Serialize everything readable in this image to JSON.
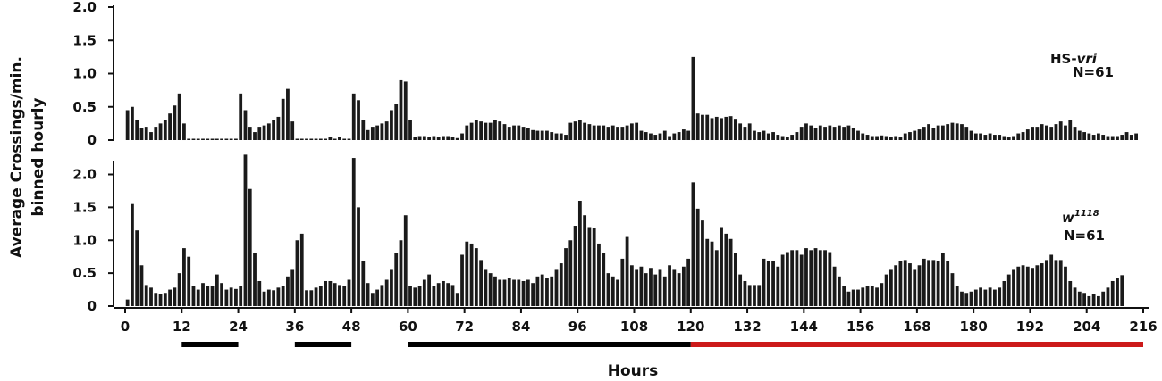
{
  "chart_data": {
    "type": "bar",
    "ylabel_line1": "Average Crossings/min.",
    "ylabel_line2": "binned hourly",
    "xlabel": "Hours",
    "x_ticks": [
      0,
      12,
      24,
      36,
      48,
      60,
      72,
      84,
      96,
      108,
      120,
      132,
      144,
      156,
      168,
      180,
      192,
      204,
      216
    ],
    "x_range": [
      0,
      216
    ],
    "bar_width_hours": 1,
    "light_bars": [
      {
        "start": 12,
        "end": 24,
        "color": "#000000"
      },
      {
        "start": 36,
        "end": 48,
        "color": "#000000"
      },
      {
        "start": 60,
        "end": 120,
        "color": "#000000"
      },
      {
        "start": 120,
        "end": 216,
        "color": "#cc1a1a"
      }
    ],
    "panels": [
      {
        "label_main": "HS-",
        "label_italic": "vri",
        "label_sup": "",
        "n_label": "N=61",
        "ylim": [
          0,
          2.0
        ],
        "y_ticks": [
          {
            "value": 0,
            "label": "0"
          },
          {
            "value": 0.5,
            "label": "0.5"
          },
          {
            "value": 1.0,
            "label": "1.0"
          },
          {
            "value": 1.5,
            "label": "1.5"
          },
          {
            "value": 2.0,
            "label": "2.0"
          }
        ],
        "values": [
          0.45,
          0.5,
          0.3,
          0.18,
          0.2,
          0.12,
          0.2,
          0.25,
          0.3,
          0.4,
          0.52,
          0.7,
          0.25,
          0.02,
          0.02,
          0.02,
          0.02,
          0.02,
          0.02,
          0.02,
          0.02,
          0.02,
          0.02,
          0.02,
          0.7,
          0.45,
          0.2,
          0.12,
          0.2,
          0.22,
          0.25,
          0.3,
          0.35,
          0.62,
          0.77,
          0.28,
          0.02,
          0.02,
          0.02,
          0.02,
          0.02,
          0.02,
          0.02,
          0.05,
          0.02,
          0.05,
          0.02,
          0.02,
          0.7,
          0.6,
          0.3,
          0.15,
          0.2,
          0.22,
          0.25,
          0.28,
          0.45,
          0.55,
          0.9,
          0.88,
          0.3,
          0.05,
          0.06,
          0.06,
          0.05,
          0.06,
          0.05,
          0.06,
          0.06,
          0.05,
          0.03,
          0.1,
          0.22,
          0.26,
          0.3,
          0.28,
          0.26,
          0.26,
          0.3,
          0.28,
          0.24,
          0.2,
          0.22,
          0.22,
          0.2,
          0.18,
          0.15,
          0.14,
          0.14,
          0.14,
          0.12,
          0.1,
          0.1,
          0.08,
          0.26,
          0.28,
          0.3,
          0.26,
          0.24,
          0.22,
          0.22,
          0.22,
          0.2,
          0.22,
          0.2,
          0.2,
          0.22,
          0.25,
          0.26,
          0.14,
          0.12,
          0.1,
          0.08,
          0.1,
          0.14,
          0.06,
          0.1,
          0.12,
          0.16,
          0.14,
          1.25,
          0.4,
          0.38,
          0.38,
          0.33,
          0.35,
          0.33,
          0.35,
          0.36,
          0.32,
          0.25,
          0.2,
          0.25,
          0.14,
          0.12,
          0.14,
          0.1,
          0.12,
          0.08,
          0.06,
          0.05,
          0.08,
          0.12,
          0.2,
          0.25,
          0.22,
          0.18,
          0.22,
          0.2,
          0.22,
          0.2,
          0.22,
          0.2,
          0.22,
          0.18,
          0.14,
          0.1,
          0.08,
          0.06,
          0.06,
          0.07,
          0.06,
          0.05,
          0.06,
          0.04,
          0.1,
          0.12,
          0.14,
          0.16,
          0.2,
          0.24,
          0.18,
          0.22,
          0.22,
          0.24,
          0.26,
          0.25,
          0.24,
          0.2,
          0.14,
          0.1,
          0.1,
          0.08,
          0.1,
          0.08,
          0.08,
          0.06,
          0.04,
          0.06,
          0.1,
          0.12,
          0.16,
          0.2,
          0.2,
          0.24,
          0.22,
          0.2,
          0.24,
          0.28,
          0.22,
          0.3,
          0.2,
          0.14,
          0.12,
          0.1,
          0.08,
          0.1,
          0.08,
          0.06,
          0.06,
          0.06,
          0.08,
          0.12,
          0.08,
          0.1
        ]
      },
      {
        "label_main": "w",
        "label_italic": "",
        "label_sup": "1118",
        "n_label": "N=61",
        "ylim": [
          0,
          2.4
        ],
        "y_ticks": [
          {
            "value": 0,
            "label": "0"
          },
          {
            "value": 0.5,
            "label": "0.5"
          },
          {
            "value": 1.0,
            "label": "1.0"
          },
          {
            "value": 1.5,
            "label": "1.5"
          },
          {
            "value": 2.0,
            "label": "2.0"
          }
        ],
        "values": [
          0.1,
          1.55,
          1.15,
          0.62,
          0.32,
          0.28,
          0.2,
          0.18,
          0.2,
          0.25,
          0.28,
          0.5,
          0.88,
          0.75,
          0.3,
          0.25,
          0.35,
          0.3,
          0.3,
          0.48,
          0.35,
          0.25,
          0.28,
          0.26,
          0.3,
          2.3,
          1.78,
          0.8,
          0.38,
          0.22,
          0.25,
          0.24,
          0.28,
          0.3,
          0.45,
          0.55,
          1.0,
          1.1,
          0.24,
          0.24,
          0.28,
          0.3,
          0.38,
          0.38,
          0.35,
          0.32,
          0.3,
          0.4,
          2.25,
          1.5,
          0.68,
          0.35,
          0.2,
          0.25,
          0.32,
          0.4,
          0.55,
          0.8,
          1.0,
          1.38,
          0.3,
          0.28,
          0.3,
          0.4,
          0.48,
          0.3,
          0.35,
          0.38,
          0.35,
          0.32,
          0.2,
          0.78,
          0.98,
          0.95,
          0.88,
          0.7,
          0.55,
          0.5,
          0.45,
          0.4,
          0.4,
          0.42,
          0.4,
          0.4,
          0.38,
          0.4,
          0.35,
          0.45,
          0.48,
          0.42,
          0.45,
          0.55,
          0.65,
          0.88,
          1.0,
          1.22,
          1.6,
          1.38,
          1.2,
          1.18,
          0.95,
          0.8,
          0.5,
          0.45,
          0.4,
          0.72,
          1.05,
          0.62,
          0.55,
          0.6,
          0.5,
          0.58,
          0.48,
          0.55,
          0.45,
          0.62,
          0.55,
          0.5,
          0.6,
          0.72,
          1.88,
          1.48,
          1.3,
          1.02,
          0.98,
          0.85,
          1.2,
          1.1,
          1.02,
          0.8,
          0.48,
          0.38,
          0.32,
          0.32,
          0.32,
          0.72,
          0.68,
          0.68,
          0.6,
          0.78,
          0.82,
          0.85,
          0.85,
          0.78,
          0.88,
          0.85,
          0.88,
          0.85,
          0.85,
          0.82,
          0.6,
          0.45,
          0.3,
          0.22,
          0.25,
          0.25,
          0.28,
          0.3,
          0.3,
          0.28,
          0.35,
          0.48,
          0.55,
          0.62,
          0.68,
          0.7,
          0.65,
          0.55,
          0.62,
          0.72,
          0.7,
          0.7,
          0.68,
          0.8,
          0.68,
          0.5,
          0.3,
          0.22,
          0.2,
          0.22,
          0.25,
          0.28,
          0.25,
          0.28,
          0.25,
          0.28,
          0.38,
          0.48,
          0.55,
          0.6,
          0.62,
          0.6,
          0.58,
          0.62,
          0.65,
          0.7,
          0.78,
          0.7,
          0.7,
          0.6,
          0.38,
          0.28,
          0.22,
          0.2,
          0.15,
          0.18,
          0.15,
          0.22,
          0.28,
          0.38,
          0.42,
          0.47
        ]
      }
    ]
  }
}
